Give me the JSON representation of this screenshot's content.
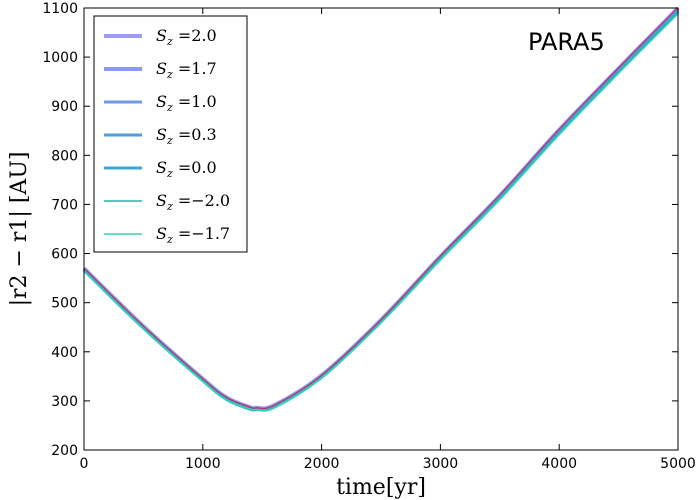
{
  "chart_data": {
    "type": "line",
    "title": "",
    "annotation": "PARA5",
    "xlabel": "time[yr]",
    "ylabel": "|r2 − r1| [AU]",
    "xlim": [
      0,
      5000
    ],
    "ylim": [
      200,
      1100
    ],
    "xticks": [
      "0",
      "1000",
      "2000",
      "3000",
      "4000",
      "5000"
    ],
    "yticks": [
      "200",
      "300",
      "400",
      "500",
      "600",
      "700",
      "800",
      "900",
      "1000",
      "1100"
    ],
    "grid": false,
    "legend_position": "top-left",
    "x": [
      0,
      500,
      1000,
      1200,
      1400,
      1450,
      1600,
      2000,
      2500,
      3000,
      3500,
      4000,
      4500,
      5000
    ],
    "series": [
      {
        "name": "S_z = 2.0",
        "legend_label": "=2.0",
        "color": "#9c9cf5",
        "linewidth": 4,
        "values": [
          570,
          452,
          345,
          307,
          287,
          286,
          291,
          352,
          465,
          594,
          718,
          852,
          977,
          1100
        ]
      },
      {
        "name": "S_z = 1.7",
        "legend_label": "=1.7",
        "color": "#8a9af0",
        "linewidth": 4,
        "values": [
          569,
          451,
          344,
          306,
          286,
          285,
          290,
          351,
          464,
          593,
          717,
          851,
          976,
          1098
        ]
      },
      {
        "name": "S_z = 1.0",
        "legend_label": "=1.0",
        "color": "#6f9ae8",
        "linewidth": 3,
        "values": [
          568,
          450,
          343,
          305,
          285,
          284,
          289,
          350,
          463,
          592,
          716,
          849,
          974,
          1096
        ]
      },
      {
        "name": "S_z = 0.3",
        "legend_label": "=0.3",
        "color": "#4f9ee0",
        "linewidth": 3,
        "values": [
          567,
          449,
          342,
          304,
          284,
          283,
          288,
          349,
          462,
          591,
          714,
          847,
          972,
          1094
        ]
      },
      {
        "name": "S_z = 0.0",
        "legend_label": "=0.0",
        "color": "#3da6cc",
        "linewidth": 3,
        "values": [
          566,
          448,
          341,
          303,
          283,
          283,
          287,
          348,
          461,
          589,
          712,
          845,
          970,
          1092
        ]
      },
      {
        "name": "S_z = -2.0",
        "legend_label": "=−2.0",
        "color": "#1fb5ad",
        "linewidth": 1.5,
        "values": [
          565,
          447,
          340,
          302,
          283,
          282,
          286,
          347,
          460,
          588,
          711,
          843,
          968,
          1090
        ]
      },
      {
        "name": "S_z = -1.7",
        "legend_label": "=−1.7",
        "color": "#2fd6b4",
        "linewidth": 1.5,
        "values": [
          565,
          447,
          340,
          302,
          283,
          282,
          286,
          347,
          459,
          587,
          710,
          842,
          967,
          1088
        ]
      }
    ],
    "extra_series": [
      {
        "name": "magenta",
        "color": "#c0306a",
        "linewidth": 1.2,
        "values": [
          570,
          452,
          345,
          307,
          287,
          286,
          291,
          352,
          465,
          595,
          719,
          853,
          978,
          1101
        ]
      }
    ]
  }
}
